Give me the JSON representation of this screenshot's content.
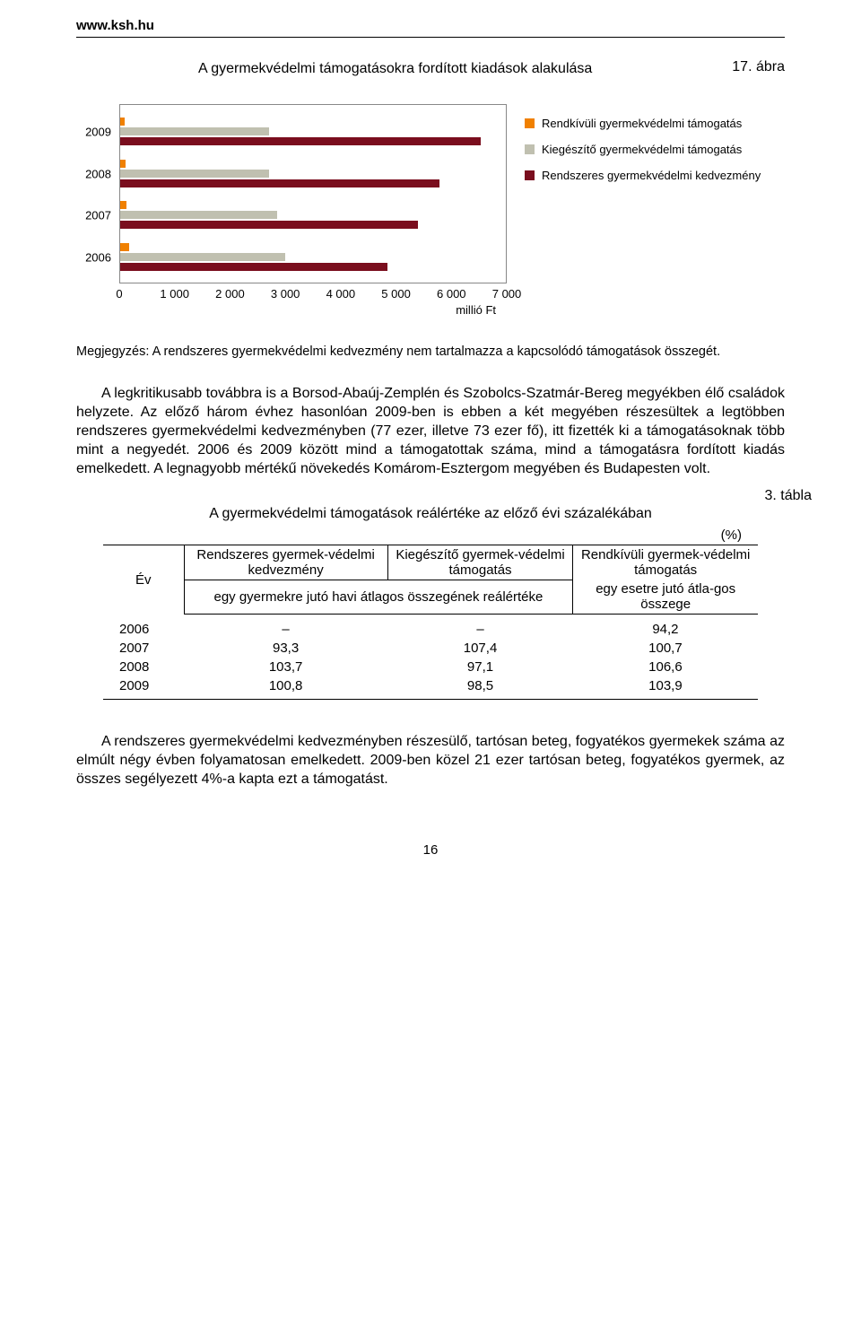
{
  "header_url": "www.ksh.hu",
  "figure_number": "17. ábra",
  "chart_title": "A gyermekvédelmi támogatásokra fordított kiadások alakulása",
  "chart": {
    "type": "bar-horizontal-grouped",
    "categories": [
      "2009",
      "2008",
      "2007",
      "2006"
    ],
    "x_ticks": [
      "0",
      "1 000",
      "2 000",
      "3 000",
      "4 000",
      "5 000",
      "6 000",
      "7 000"
    ],
    "x_max": 7000,
    "x_unit": "millió Ft",
    "background_color": "#ffffff",
    "border_color": "#888888",
    "series": [
      {
        "label": "Rendkívüli gyermekvédelmi támogatás",
        "color": "#f08000",
        "values": {
          "2009": 80,
          "2008": 100,
          "2007": 120,
          "2006": 160
        }
      },
      {
        "label": "Kiegészítő gyermekvédelmi támogatás",
        "color": "#c0c0b0",
        "values": {
          "2009": 2700,
          "2008": 2700,
          "2007": 2850,
          "2006": 3000
        }
      },
      {
        "label": "Rendszeres gyermekvédelmi kedvezmény",
        "color": "#7a0e1e",
        "values": {
          "2009": 6550,
          "2008": 5800,
          "2007": 5400,
          "2006": 4850
        }
      }
    ]
  },
  "legend": [
    {
      "color": "#f08000",
      "label": "Rendkívüli gyermekvédelmi támogatás"
    },
    {
      "color": "#c0c0b0",
      "label": "Kiegészítő gyermekvédelmi támogatás"
    },
    {
      "color": "#7a0e1e",
      "label": "Rendszeres gyermekvédelmi kedvezmény"
    }
  ],
  "note": "Megjegyzés: A rendszeres gyermekvédelmi kedvezmény nem tartalmazza a kapcsolódó támogatások összegét.",
  "para1": "A legkritikusabb továbbra is a Borsod-Abaúj-Zemplén és Szobolcs-Szatmár-Bereg megyékben élő családok helyzete. Az előző három évhez hasonlóan 2009-ben is ebben a két megyében részesültek a legtöbben rendszeres gyermekvédelmi kedvezményben (77 ezer, illetve 73 ezer fő), itt fizették ki a támogatásoknak több mint a negyedét. 2006 és 2009 között mind a támogatottak száma, mind a támogatásra fordított kiadás emelkedett. A legnagyobb mértékű növekedés Komárom-Esztergom megyében és Budapesten volt.",
  "table_number": "3. tábla",
  "table_title": "A gyermekvédelmi támogatások reálértéke az előző évi százalékában",
  "percent_label": "(%)",
  "table": {
    "col_ev": "Év",
    "col1_top": "Rendszeres gyermek-védelmi kedvezmény",
    "col2_top": "Kiegészítő gyermek-védelmi támogatás",
    "col12_sub": "egy gyermekre jutó havi átlagos összegének reálértéke",
    "col3_top": "Rendkívüli gyermek-védelmi támogatás",
    "col3_sub": "egy esetre jutó átla-gos összege",
    "rows": [
      {
        "year": "2006",
        "c1": "–",
        "c2": "–",
        "c3": "94,2"
      },
      {
        "year": "2007",
        "c1": "93,3",
        "c2": "107,4",
        "c3": "100,7"
      },
      {
        "year": "2008",
        "c1": "103,7",
        "c2": "97,1",
        "c3": "106,6"
      },
      {
        "year": "2009",
        "c1": "100,8",
        "c2": "98,5",
        "c3": "103,9"
      }
    ]
  },
  "para2": "A rendszeres gyermekvédelmi kedvezményben részesülő, tartósan beteg, fogyatékos gyermekek száma az elmúlt négy évben folyamatosan emelkedett. 2009-ben közel 21 ezer tartósan beteg, fogyatékos gyermek, az összes segélyezett 4%-a kapta ezt a támogatást.",
  "page_number": "16"
}
